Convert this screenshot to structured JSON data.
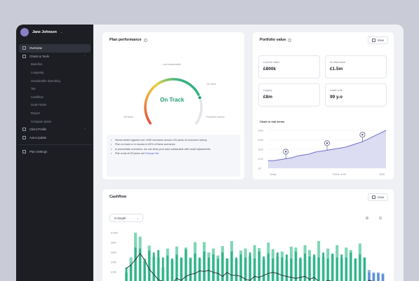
{
  "user": {
    "name": "Jane Johnson"
  },
  "sidebar": {
    "items": [
      {
        "label": "Overview",
        "active": true,
        "icon": "document-icon"
      },
      {
        "label": "Charts & Tools",
        "icon": "chart-icon",
        "expandable": true
      },
      {
        "label": "Baseline",
        "sub": true
      },
      {
        "label": "Longevity",
        "sub": true
      },
      {
        "label": "Sustainable Spending",
        "sub": true
      },
      {
        "label": "Tax",
        "sub": true
      },
      {
        "label": "Cashflow",
        "sub": true
      },
      {
        "label": "Goal Finder",
        "sub": true
      },
      {
        "label": "Report",
        "sub": true
      },
      {
        "label": "Compare plans",
        "sub": true
      },
      {
        "label": "Client Profile",
        "icon": "profile-icon",
        "expandable": true
      },
      {
        "label": "Auto-Update",
        "icon": "refresh-icon"
      }
    ],
    "settings_label": "Plan Settings"
  },
  "plan_performance": {
    "title": "Plan performance",
    "status": "On Track",
    "gauge_labels": {
      "low": "Low sustainable",
      "on_track": "On track",
      "off_track": "Off track",
      "possible_excess": "Possible excess"
    },
    "gauge_value": 0.78,
    "bullets": [
      "Stress-tested against over 1000 scenarios across 120 years of economic history",
      "Plan on track or in excess in 83% of these scenarios",
      "In pessimistic scenarios, we can keep your plan sustainable with small adjustments",
      "Plan ends at 99 years old"
    ],
    "link_label": "Change this"
  },
  "portfolio": {
    "title": "Portfolio value",
    "view_label": "View",
    "stats": [
      {
        "label": "Current value",
        "value": "£800k"
      },
      {
        "label": "At retirement",
        "value": "£1.5m"
      },
      {
        "label": "Legacy",
        "value": "£8m"
      },
      {
        "label": "Lasts until",
        "value": "99 y.o"
      }
    ],
    "chart_label": "Chart in real terms"
  },
  "cashflow": {
    "title": "Cashflow",
    "view_label": "View",
    "select_value": "In-Depth"
  },
  "colors": {
    "accent": "#1e9e75",
    "sidebar": "#1c1e24",
    "area": "#6f6fc9"
  },
  "chart_data": [
    {
      "type": "area",
      "title": "Chart in real terms",
      "y_tick_labels": [
        "£4m",
        "£3m",
        "£2m",
        "£1m",
        "£0"
      ],
      "x_tick_labels": [
        "Today",
        "Retire at 60",
        "2060"
      ],
      "x": [
        0,
        1,
        2,
        3,
        4,
        5,
        6,
        7,
        8,
        9,
        10,
        11,
        12,
        13,
        14,
        15,
        16,
        17,
        18,
        19,
        20
      ],
      "values": [
        0.8,
        0.8,
        0.9,
        1.0,
        1.1,
        1.3,
        1.4,
        1.5,
        1.7,
        1.8,
        1.9,
        2.0,
        2.1,
        2.2,
        2.4,
        2.6,
        2.8,
        3.1,
        3.4,
        3.7,
        4.0
      ],
      "ylim": [
        0,
        4
      ],
      "markers": [
        {
          "x": 3,
          "icon": "pin-icon"
        },
        {
          "x": 10,
          "icon": "pin-icon"
        },
        {
          "x": 16,
          "icon": "pin-icon"
        }
      ]
    },
    {
      "type": "bar",
      "title": "Cashflow",
      "y_tick_labels": [
        "£100k",
        "£80k",
        "£60k",
        "£40k",
        "£20k"
      ],
      "ylim": [
        0,
        110000
      ],
      "series": [
        {
          "values": [
            30000,
            60000,
            110000,
            102000,
            58000,
            84000,
            62000,
            60000,
            40000,
            78000,
            55000,
            82000,
            58000,
            80000,
            60000,
            91000,
            57000,
            91000,
            70000,
            78000,
            64000,
            83000,
            58000,
            93000,
            56000,
            74000,
            78000,
            63000,
            85000,
            79000,
            56000,
            90000,
            77000,
            62000,
            72000,
            55000,
            82000,
            80000,
            57000,
            85000,
            75000,
            62000,
            93000,
            60000,
            78000,
            66000,
            85000,
            59000,
            80000,
            75000,
            58000,
            88000,
            60000,
            35000,
            30000,
            30000,
            28000
          ]
        },
        {
          "values": [
            40000,
            45000,
            80000,
            78000,
            52000,
            74000,
            70000,
            75000,
            60000,
            64000,
            58000,
            66000,
            60000,
            76000,
            58000,
            68000,
            60000,
            72000,
            60000,
            66000,
            58000,
            70000,
            58000,
            72000,
            60000,
            66000,
            60000,
            70000,
            58000,
            72000,
            62000,
            68000,
            58000,
            70000,
            60000,
            66000,
            58000,
            72000,
            60000,
            68000,
            62000,
            66000,
            60000,
            70000,
            58000,
            68000,
            60000,
            66000,
            60000,
            70000,
            58000,
            66000,
            60000,
            30000,
            28000,
            28000,
            26000
          ]
        },
        {
          "values": [
            38000,
            45000,
            56000,
            68000,
            55000,
            36000,
            26000,
            15000,
            12000,
            12000,
            8000,
            18000,
            14000,
            22000,
            26000,
            28000,
            33000,
            32000,
            34000,
            30000,
            28000,
            22000,
            30000,
            24000,
            24000,
            22000,
            16000,
            14000,
            22000,
            20000,
            24000,
            28000,
            30000,
            28000,
            24000,
            22000,
            20000,
            18000,
            20000,
            22000,
            16000,
            20000,
            12000,
            10000,
            14000,
            12000,
            10000,
            8000,
            6000,
            4000,
            3000,
            4000,
            8000,
            14000,
            12000,
            10000,
            12000
          ]
        }
      ]
    }
  ]
}
